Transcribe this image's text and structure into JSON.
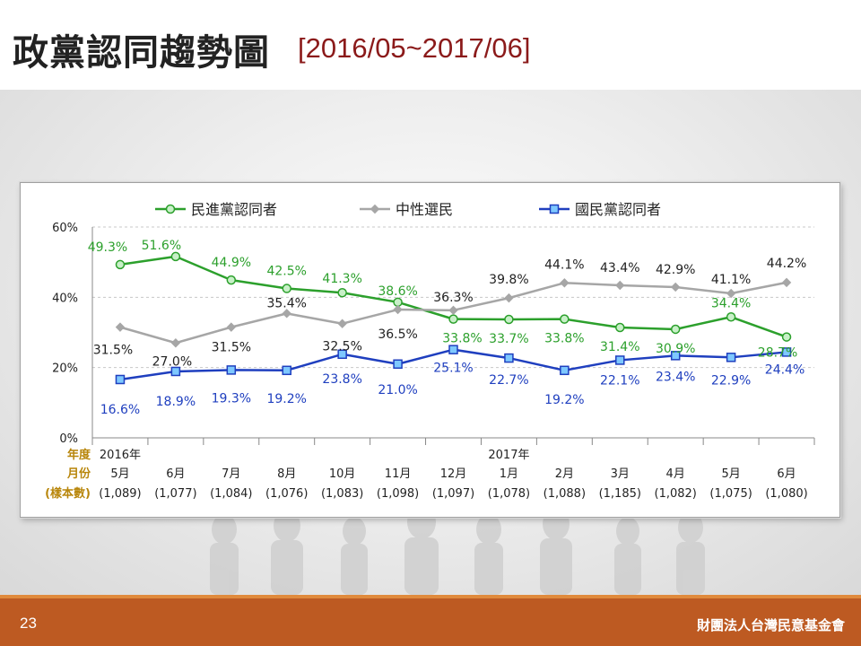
{
  "title": {
    "main": "政黨認同趨勢圖",
    "range": "[2016/05~2017/06]"
  },
  "footer": {
    "page_number": "23",
    "org": "財團法人台灣民意基金會"
  },
  "colors": {
    "dpp": "#2ca02c",
    "neutral": "#a6a6a6",
    "kmt": "#1f3fbf",
    "footer": "#bd5a22",
    "title_range": "#8b1a1a",
    "row_labels": "#b8860b"
  },
  "chart_data": {
    "type": "line",
    "ylim": [
      0,
      60
    ],
    "yticks": [
      "0%",
      "20%",
      "40%",
      "60%"
    ],
    "yticks_values": [
      0,
      20,
      40,
      60
    ],
    "row_labels": [
      "年度",
      "月份",
      "(樣本數)"
    ],
    "categories": [
      {
        "year": "2016年",
        "month": "5月",
        "n": "(1,089)"
      },
      {
        "year": "",
        "month": "6月",
        "n": "(1,077)"
      },
      {
        "year": "",
        "month": "7月",
        "n": "(1,084)"
      },
      {
        "year": "",
        "month": "8月",
        "n": "(1,076)"
      },
      {
        "year": "",
        "month": "10月",
        "n": "(1,083)"
      },
      {
        "year": "",
        "month": "11月",
        "n": "(1,098)"
      },
      {
        "year": "",
        "month": "12月",
        "n": "(1,097)"
      },
      {
        "year": "2017年",
        "month": "1月",
        "n": "(1,078)"
      },
      {
        "year": "",
        "month": "2月",
        "n": "(1,088)"
      },
      {
        "year": "",
        "month": "3月",
        "n": "(1,185)"
      },
      {
        "year": "",
        "month": "4月",
        "n": "(1,082)"
      },
      {
        "year": "",
        "month": "5月",
        "n": "(1,075)"
      },
      {
        "year": "",
        "month": "6月",
        "n": "(1,080)"
      }
    ],
    "series": [
      {
        "name": "民進黨認同者",
        "color": "#2ca02c",
        "marker": "circle",
        "values": [
          49.3,
          51.6,
          44.9,
          42.5,
          41.3,
          38.6,
          33.8,
          33.7,
          33.8,
          31.4,
          30.9,
          34.4,
          28.7
        ],
        "labels": [
          "49.3%",
          "51.6%",
          "44.9%",
          "42.5%",
          "41.3%",
          "38.6%",
          "33.8%",
          "33.7%",
          "33.8%",
          "31.4%",
          "30.9%",
          "34.4%",
          "28.7%"
        ]
      },
      {
        "name": "中性選民",
        "color": "#a6a6a6",
        "marker": "diamond",
        "values": [
          31.5,
          27.0,
          31.5,
          35.4,
          32.5,
          36.5,
          36.3,
          39.8,
          44.1,
          43.4,
          42.9,
          41.1,
          44.2
        ],
        "labels": [
          "31.5%",
          "27.0%",
          "31.5%",
          "35.4%",
          "32.5%",
          "36.5%",
          "36.3%",
          "39.8%",
          "44.1%",
          "43.4%",
          "42.9%",
          "41.1%",
          "44.2%"
        ]
      },
      {
        "name": "國民黨認同者",
        "color": "#1f3fbf",
        "marker": "square",
        "values": [
          16.6,
          18.9,
          19.3,
          19.2,
          23.8,
          21.0,
          25.1,
          22.7,
          19.2,
          22.1,
          23.4,
          22.9,
          24.4
        ],
        "labels": [
          "16.6%",
          "18.9%",
          "19.3%",
          "19.2%",
          "23.8%",
          "21.0%",
          "25.1%",
          "22.7%",
          "19.2%",
          "22.1%",
          "23.4%",
          "22.9%",
          "24.4%"
        ]
      }
    ],
    "legend_position": "top",
    "grid": "horizontal-dashed"
  }
}
